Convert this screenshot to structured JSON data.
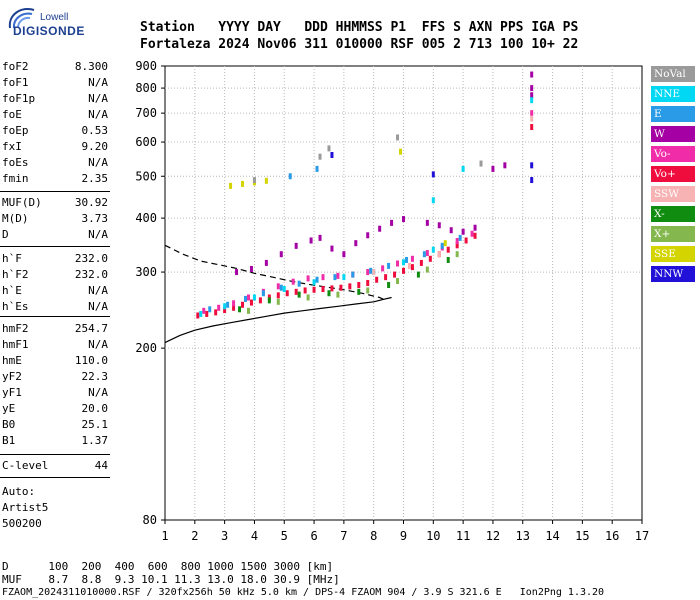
{
  "logo": {
    "brand": "Lowell",
    "product": "DIGISONDE"
  },
  "header": {
    "line1": "Station   YYYY DAY   DDD HHMMSS P1  FFS S AXN PPS IGA PS",
    "line2": "Fortaleza 2024 Nov06 311 010000 RSF 005 2 713 100 10+ 22"
  },
  "params": [
    {
      "key": "foF2",
      "value": "8.300"
    },
    {
      "key": "foF1",
      "value": "N/A"
    },
    {
      "key": "foF1p",
      "value": "N/A"
    },
    {
      "key": "foE",
      "value": "N/A"
    },
    {
      "key": "foEp",
      "value": "0.53"
    },
    {
      "key": "fxI",
      "value": "9.20"
    },
    {
      "key": "foEs",
      "value": "N/A"
    },
    {
      "key": "fmin",
      "value": "2.35"
    },
    {
      "key": "MUF(D)",
      "value": "30.92"
    },
    {
      "key": "M(D)",
      "value": "3.73"
    },
    {
      "key": "D",
      "value": "N/A"
    },
    {
      "key": "h`F",
      "value": "232.0"
    },
    {
      "key": "h`F2",
      "value": "232.0"
    },
    {
      "key": "h`E",
      "value": "N/A"
    },
    {
      "key": "h`Es",
      "value": "N/A"
    },
    {
      "key": "hmF2",
      "value": "254.7"
    },
    {
      "key": "hmF1",
      "value": "N/A"
    },
    {
      "key": "hmE",
      "value": "110.0"
    },
    {
      "key": "yF2",
      "value": "22.3"
    },
    {
      "key": "yF1",
      "value": "N/A"
    },
    {
      "key": "yE",
      "value": "20.0"
    },
    {
      "key": "B0",
      "value": "25.1"
    },
    {
      "key": "B1",
      "value": "1.37"
    },
    {
      "key": "C-level",
      "value": "44"
    }
  ],
  "autoscaling": {
    "line1": "Auto:",
    "line2": "Artist5",
    "line3": "500200"
  },
  "footer": {
    "d_row": "D      100  200  400  600  800 1000 1500 3000 [km]",
    "muf_row": "MUF    8.7  8.8  9.3 10.1 11.3 13.0 18.0 30.9 [MHz]",
    "info_row": "FZAOM_2024311010000.RSF / 320fx256h 50 kHz 5.0 km / DPS-4 FZAOM 904 / 3.9 S 321.6 E   Ion2Png 1.3.20"
  },
  "legend": [
    {
      "label": "NoVal",
      "color": "#9a9a9a"
    },
    {
      "label": "NNE",
      "color": "#00d8f4"
    },
    {
      "label": "E",
      "color": "#2a9be6"
    },
    {
      "label": "W",
      "color": "#a400a4"
    },
    {
      "label": "Vo-",
      "color": "#f02ca8"
    },
    {
      "label": "Vo+",
      "color": "#ef0d3d"
    },
    {
      "label": "SSW",
      "color": "#f7b3b3"
    },
    {
      "label": "X-",
      "color": "#108c10"
    },
    {
      "label": "X+",
      "color": "#84b84e"
    },
    {
      "label": "SSE",
      "color": "#d4d400"
    },
    {
      "label": "NNW",
      "color": "#2010d8"
    }
  ],
  "chart_data": {
    "type": "scatter",
    "xlabel": "",
    "ylabel": "",
    "xlim": [
      1,
      17
    ],
    "ylim": [
      80,
      900
    ],
    "y_scale": "log",
    "x_ticks": [
      1,
      2,
      3,
      4,
      5,
      6,
      7,
      8,
      9,
      10,
      11,
      12,
      13,
      14,
      15,
      16,
      17
    ],
    "y_ticks": [
      80,
      200,
      300,
      400,
      500,
      600,
      700,
      800,
      900
    ],
    "grid": true,
    "legend_position": "right",
    "series": [
      {
        "name": "Vo+",
        "color": "#ef0d3d",
        "points": [
          [
            2.1,
            238
          ],
          [
            2.4,
            240
          ],
          [
            2.7,
            242
          ],
          [
            3.0,
            245
          ],
          [
            3.3,
            248
          ],
          [
            3.6,
            252
          ],
          [
            3.9,
            255
          ],
          [
            4.2,
            258
          ],
          [
            4.5,
            262
          ],
          [
            4.8,
            265
          ],
          [
            5.1,
            268
          ],
          [
            5.4,
            270
          ],
          [
            5.7,
            272
          ],
          [
            6.0,
            273
          ],
          [
            6.3,
            274
          ],
          [
            6.6,
            275
          ],
          [
            6.9,
            276
          ],
          [
            7.2,
            278
          ],
          [
            7.5,
            280
          ],
          [
            7.8,
            283
          ],
          [
            8.1,
            288
          ],
          [
            8.4,
            292
          ],
          [
            8.7,
            296
          ],
          [
            9.0,
            302
          ],
          [
            9.3,
            308
          ],
          [
            9.6,
            315
          ],
          [
            9.9,
            322
          ],
          [
            10.2,
            330
          ],
          [
            10.5,
            338
          ],
          [
            10.8,
            346
          ],
          [
            11.1,
            355
          ],
          [
            11.4,
            364
          ],
          [
            13.3,
            650
          ]
        ]
      },
      {
        "name": "Vo-",
        "color": "#f02ca8",
        "points": [
          [
            2.3,
            244
          ],
          [
            2.8,
            248
          ],
          [
            3.3,
            254
          ],
          [
            3.8,
            262
          ],
          [
            4.3,
            270
          ],
          [
            4.8,
            278
          ],
          [
            5.3,
            285
          ],
          [
            5.8,
            290
          ],
          [
            6.3,
            292
          ],
          [
            6.8,
            294
          ],
          [
            7.3,
            296
          ],
          [
            7.8,
            300
          ],
          [
            8.3,
            306
          ],
          [
            8.8,
            314
          ],
          [
            9.3,
            322
          ],
          [
            9.8,
            332
          ],
          [
            10.3,
            342
          ],
          [
            10.8,
            354
          ],
          [
            11.3,
            368
          ],
          [
            13.3,
            700
          ]
        ]
      },
      {
        "name": "W",
        "color": "#a400a4",
        "points": [
          [
            3.4,
            300
          ],
          [
            3.9,
            305
          ],
          [
            4.4,
            315
          ],
          [
            4.9,
            330
          ],
          [
            5.4,
            345
          ],
          [
            5.9,
            355
          ],
          [
            6.2,
            360
          ],
          [
            6.6,
            340
          ],
          [
            7.0,
            330
          ],
          [
            7.4,
            350
          ],
          [
            7.8,
            365
          ],
          [
            8.2,
            378
          ],
          [
            8.6,
            390
          ],
          [
            9.0,
            398
          ],
          [
            9.8,
            390
          ],
          [
            10.2,
            385
          ],
          [
            10.6,
            375
          ],
          [
            11.0,
            372
          ],
          [
            11.4,
            380
          ],
          [
            12.0,
            520
          ],
          [
            12.4,
            530
          ],
          [
            13.3,
            860
          ],
          [
            13.3,
            800
          ],
          [
            13.3,
            770
          ]
        ]
      },
      {
        "name": "E",
        "color": "#2a9be6",
        "points": [
          [
            2.5,
            246
          ],
          [
            3.1,
            252
          ],
          [
            3.7,
            260
          ],
          [
            4.3,
            268
          ],
          [
            4.9,
            276
          ],
          [
            5.5,
            282
          ],
          [
            6.1,
            288
          ],
          [
            6.7,
            292
          ],
          [
            7.3,
            296
          ],
          [
            7.9,
            302
          ],
          [
            8.5,
            310
          ],
          [
            9.1,
            320
          ],
          [
            9.7,
            330
          ],
          [
            10.3,
            345
          ],
          [
            10.9,
            360
          ],
          [
            5.2,
            500
          ],
          [
            6.1,
            520
          ]
        ]
      },
      {
        "name": "NNE",
        "color": "#00d8f4",
        "points": [
          [
            2.2,
            240
          ],
          [
            3.0,
            250
          ],
          [
            4.0,
            262
          ],
          [
            5.0,
            274
          ],
          [
            6.0,
            284
          ],
          [
            7.0,
            292
          ],
          [
            8.0,
            300
          ],
          [
            9.0,
            316
          ],
          [
            10.0,
            338
          ],
          [
            10.0,
            440
          ],
          [
            11.0,
            520
          ],
          [
            13.3,
            750
          ]
        ]
      },
      {
        "name": "X-",
        "color": "#108c10",
        "points": [
          [
            3.5,
            246
          ],
          [
            4.5,
            258
          ],
          [
            5.5,
            266
          ],
          [
            6.5,
            268
          ],
          [
            7.5,
            270
          ],
          [
            8.5,
            280
          ],
          [
            9.5,
            296
          ],
          [
            10.5,
            320
          ]
        ]
      },
      {
        "name": "X+",
        "color": "#84b84e",
        "points": [
          [
            3.8,
            244
          ],
          [
            4.8,
            256
          ],
          [
            5.8,
            262
          ],
          [
            6.8,
            266
          ],
          [
            7.8,
            272
          ],
          [
            8.8,
            286
          ],
          [
            9.8,
            304
          ],
          [
            10.8,
            330
          ]
        ]
      },
      {
        "name": "SSE",
        "color": "#d4d400",
        "points": [
          [
            3.2,
            475
          ],
          [
            3.6,
            480
          ],
          [
            4.0,
            484
          ],
          [
            4.4,
            488
          ],
          [
            8.9,
            570
          ],
          [
            10.4,
            350
          ]
        ]
      },
      {
        "name": "SSW",
        "color": "#f7b3b3",
        "points": [
          [
            8.0,
            300
          ],
          [
            9.2,
            310
          ],
          [
            10.2,
            330
          ],
          [
            13.3,
            680
          ]
        ]
      },
      {
        "name": "NNW",
        "color": "#2010d8",
        "points": [
          [
            10.0,
            505
          ],
          [
            13.3,
            530
          ],
          [
            13.3,
            490
          ],
          [
            6.6,
            560
          ]
        ]
      },
      {
        "name": "NoVal",
        "color": "#9a9a9a",
        "points": [
          [
            4.0,
            490
          ],
          [
            6.2,
            555
          ],
          [
            6.5,
            580
          ],
          [
            8.8,
            615
          ],
          [
            11.6,
            535
          ]
        ]
      }
    ],
    "trace_upper": [
      [
        1.0,
        346
      ],
      [
        1.6,
        330
      ],
      [
        2.2,
        318
      ],
      [
        2.8,
        312
      ],
      [
        3.4,
        306
      ],
      [
        4.0,
        298
      ],
      [
        4.6,
        292
      ],
      [
        5.2,
        286
      ],
      [
        5.8,
        281
      ],
      [
        6.4,
        277
      ],
      [
        7.0,
        273
      ],
      [
        7.6,
        268
      ],
      [
        8.2,
        262
      ],
      [
        8.4,
        258
      ]
    ],
    "trace_lower": [
      [
        1.0,
        206
      ],
      [
        1.5,
        214
      ],
      [
        2.0,
        220
      ],
      [
        2.6,
        225
      ],
      [
        3.2,
        229
      ],
      [
        3.8,
        233
      ],
      [
        4.4,
        237
      ],
      [
        5.0,
        241
      ],
      [
        5.6,
        244
      ],
      [
        6.2,
        247
      ],
      [
        6.8,
        250
      ],
      [
        7.4,
        253
      ],
      [
        8.0,
        256
      ],
      [
        8.3,
        259
      ],
      [
        8.6,
        262
      ]
    ]
  }
}
